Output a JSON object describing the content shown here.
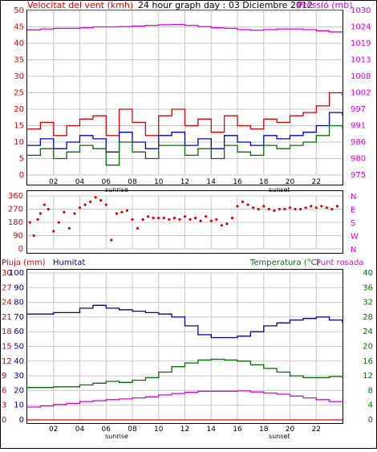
{
  "header": {
    "wind_label": "Velocitat del vent (kmh)",
    "title": "24 hour graph day : 03 Diciembre 2012",
    "pressure_label": "Pressió (mb)"
  },
  "bottom_header": {
    "rain_label": "Pluja (mm)",
    "humidity_label": "Humitat",
    "temp_label": "Temperatura (°C)",
    "dew_label": "Punt rosada"
  },
  "hour_ticks": [
    "02",
    "04",
    "06",
    "08",
    "10",
    "12",
    "14",
    "16",
    "18",
    "20",
    "22"
  ],
  "sun_labels": {
    "sunrise": "sunrise",
    "sunset": "sunset"
  },
  "colors": {
    "wind_gust": "#e00000",
    "wind_speed": "#0000c0",
    "wind_avg": "#007000",
    "pressure": "#e000e0",
    "humidity": "#000099",
    "temperature": "#007000",
    "dewpoint": "#e000e0",
    "rain": "#e00000",
    "direction": "#e00000",
    "grid": "#c8c8c8",
    "axis_red": "#e00000",
    "axis_magenta": "#e000e0",
    "axis_green": "#007000"
  },
  "chart_data": [
    {
      "type": "line",
      "name": "wind-pressure",
      "x_hours": [
        0,
        1,
        2,
        3,
        4,
        5,
        6,
        7,
        8,
        9,
        10,
        11,
        12,
        13,
        14,
        15,
        16,
        17,
        18,
        19,
        20,
        21,
        22,
        23,
        24
      ],
      "y_left_ticks": [
        0,
        5,
        10,
        15,
        20,
        25,
        30,
        35,
        40,
        45,
        50
      ],
      "y_right_ticks": [
        975,
        980,
        986,
        991,
        997,
        1002,
        1008,
        1013,
        1019,
        1024,
        1030
      ],
      "ylim_left": [
        0,
        50
      ],
      "ylim_right": [
        975,
        1030
      ],
      "series": [
        {
          "key": "wind_gust",
          "values": [
            14,
            16,
            12,
            15,
            17,
            18,
            12,
            20,
            16,
            12,
            18,
            20,
            15,
            17,
            13,
            18,
            15,
            14,
            17,
            16,
            18,
            19,
            21,
            25,
            24
          ]
        },
        {
          "key": "wind_speed",
          "values": [
            9,
            11,
            8,
            10,
            12,
            11,
            7,
            13,
            10,
            8,
            12,
            13,
            9,
            11,
            8,
            12,
            10,
            9,
            12,
            11,
            12,
            13,
            15,
            19,
            18
          ]
        },
        {
          "key": "wind_avg",
          "values": [
            6,
            8,
            5,
            7,
            9,
            8,
            3,
            10,
            7,
            5,
            9,
            9,
            6,
            8,
            5,
            9,
            7,
            6,
            9,
            8,
            9,
            10,
            12,
            15,
            14
          ]
        },
        {
          "key": "pressure",
          "values": [
            1023.5,
            1023.8,
            1024.0,
            1024.0,
            1024.2,
            1024.5,
            1024.5,
            1024.6,
            1024.8,
            1025.0,
            1025.2,
            1025.3,
            1025.0,
            1024.6,
            1024.2,
            1024.0,
            1023.6,
            1023.4,
            1023.6,
            1023.8,
            1023.8,
            1023.6,
            1023.2,
            1022.8,
            1022.6
          ]
        }
      ]
    },
    {
      "type": "scatter",
      "name": "wind-direction",
      "y_ticks": [
        0,
        90,
        180,
        270,
        360
      ],
      "compass_ticks": [
        "N",
        "W",
        "S",
        "E",
        "N"
      ],
      "ylim": [
        0,
        360
      ],
      "points": [
        [
          0.2,
          180
        ],
        [
          0.5,
          90
        ],
        [
          0.8,
          200
        ],
        [
          1.0,
          240
        ],
        [
          1.3,
          300
        ],
        [
          1.6,
          270
        ],
        [
          2.0,
          120
        ],
        [
          2.4,
          180
        ],
        [
          2.8,
          250
        ],
        [
          3.2,
          140
        ],
        [
          3.6,
          240
        ],
        [
          4.0,
          280
        ],
        [
          4.4,
          300
        ],
        [
          4.8,
          320
        ],
        [
          5.2,
          350
        ],
        [
          5.6,
          330
        ],
        [
          6.0,
          300
        ],
        [
          6.4,
          60
        ],
        [
          6.8,
          240
        ],
        [
          7.2,
          250
        ],
        [
          7.6,
          260
        ],
        [
          8.0,
          200
        ],
        [
          8.4,
          140
        ],
        [
          8.8,
          200
        ],
        [
          9.2,
          220
        ],
        [
          9.6,
          210
        ],
        [
          10.0,
          210
        ],
        [
          10.4,
          210
        ],
        [
          10.8,
          200
        ],
        [
          11.2,
          210
        ],
        [
          11.6,
          200
        ],
        [
          12.0,
          220
        ],
        [
          12.4,
          200
        ],
        [
          12.8,
          210
        ],
        [
          13.2,
          190
        ],
        [
          13.6,
          220
        ],
        [
          14.0,
          190
        ],
        [
          14.4,
          200
        ],
        [
          14.8,
          160
        ],
        [
          15.2,
          170
        ],
        [
          15.6,
          210
        ],
        [
          16.0,
          290
        ],
        [
          16.4,
          320
        ],
        [
          16.8,
          300
        ],
        [
          17.2,
          280
        ],
        [
          17.6,
          270
        ],
        [
          18.0,
          290
        ],
        [
          18.4,
          270
        ],
        [
          18.8,
          260
        ],
        [
          19.2,
          270
        ],
        [
          19.6,
          270
        ],
        [
          20.0,
          280
        ],
        [
          20.4,
          270
        ],
        [
          20.8,
          270
        ],
        [
          21.2,
          280
        ],
        [
          21.6,
          290
        ],
        [
          22.0,
          280
        ],
        [
          22.4,
          290
        ],
        [
          22.8,
          280
        ],
        [
          23.2,
          270
        ],
        [
          23.6,
          290
        ]
      ]
    },
    {
      "type": "line",
      "name": "temp-humidity",
      "x_hours": [
        0,
        1,
        2,
        3,
        4,
        5,
        6,
        7,
        8,
        9,
        10,
        11,
        12,
        13,
        14,
        15,
        16,
        17,
        18,
        19,
        20,
        21,
        22,
        23,
        24
      ],
      "y_left_ticks_humidity": [
        0,
        10,
        20,
        30,
        40,
        50,
        60,
        70,
        80,
        90,
        100
      ],
      "y_left_ticks_rain": [
        0,
        3,
        6,
        9,
        12,
        15,
        18,
        21,
        24,
        27,
        30
      ],
      "y_right_ticks_temp": [
        0,
        4,
        8,
        12,
        16,
        20,
        24,
        28,
        32,
        36,
        40
      ],
      "ylim_humidity": [
        0,
        100
      ],
      "ylim_temp": [
        0,
        40
      ],
      "series": [
        {
          "key": "humidity",
          "values": [
            72,
            72,
            73,
            73,
            76,
            78,
            76,
            75,
            74,
            73,
            72,
            70,
            64,
            58,
            56,
            56,
            57,
            60,
            64,
            66,
            68,
            69,
            70,
            68,
            66
          ]
        },
        {
          "key": "temperature",
          "values": [
            8.8,
            8.8,
            9.0,
            9.0,
            9.5,
            10.0,
            10.5,
            10.2,
            10.8,
            11.5,
            13.0,
            14.5,
            15.5,
            16.3,
            16.5,
            16.3,
            16.0,
            15.0,
            14.0,
            13.0,
            12.0,
            11.5,
            11.5,
            11.8,
            11.5
          ]
        },
        {
          "key": "dewpoint",
          "values": [
            3.5,
            3.8,
            4.2,
            4.5,
            5.0,
            5.2,
            5.5,
            5.7,
            6.0,
            6.3,
            6.8,
            7.2,
            7.5,
            7.8,
            7.8,
            7.8,
            7.9,
            7.6,
            7.3,
            7.0,
            6.5,
            6.0,
            5.5,
            5.0,
            4.8
          ]
        },
        {
          "key": "rain",
          "values": [
            0,
            0,
            0,
            0,
            0,
            0,
            0,
            0,
            0,
            0,
            0,
            0,
            0,
            0,
            0,
            0,
            0,
            0,
            0,
            0,
            0,
            0,
            0,
            0,
            0
          ]
        }
      ]
    }
  ]
}
